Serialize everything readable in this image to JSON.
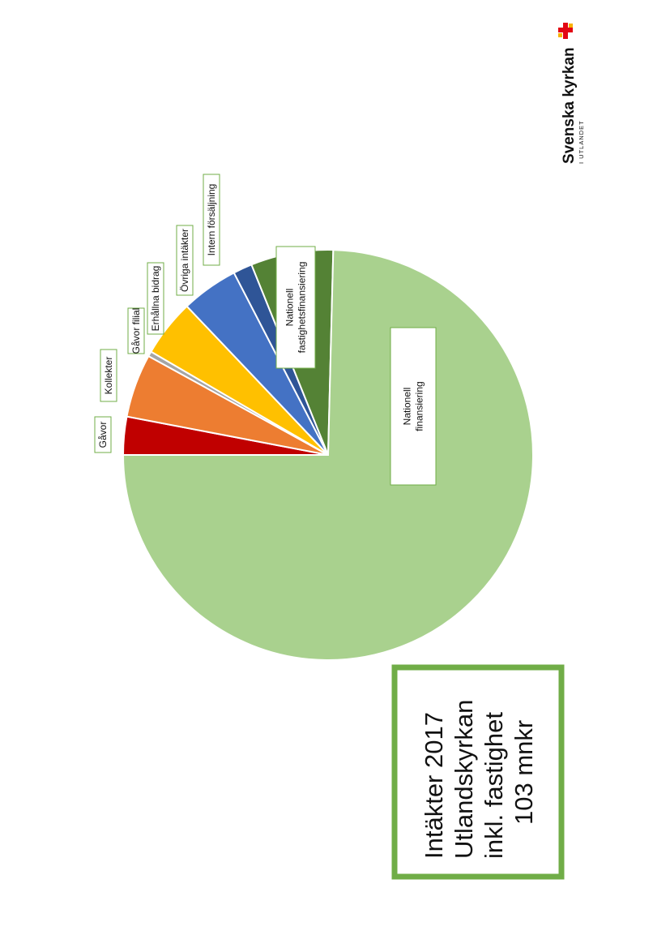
{
  "title_box": {
    "lines": [
      "Intäkter 2017",
      "Utlandskyrkan",
      "inkl. fastighet",
      "103 mnkr"
    ],
    "border_color": "#70ad47"
  },
  "logo": {
    "name": "Svenska kyrkan",
    "subtitle": "I UTLANDET",
    "icon": "church-cross-icon",
    "colors": [
      "#e30613",
      "#f9b200"
    ]
  },
  "chart_data": {
    "type": "pie",
    "title": "",
    "orientation": "rotated 90° counter-clockwise",
    "slices": [
      {
        "label": "Gåvor",
        "value": 3.0,
        "color": "#c00000"
      },
      {
        "label": "Kollekter",
        "value": 5.0,
        "color": "#ed7d31"
      },
      {
        "label": "Gåvor filial",
        "value": 0.4,
        "color": "#a5a5a5"
      },
      {
        "label": "Erhållna bidrag",
        "value": 4.5,
        "color": "#ffc000"
      },
      {
        "label": "Övriga intäkter",
        "value": 4.5,
        "color": "#4472c4"
      },
      {
        "label": "Intern försäljning",
        "value": 1.5,
        "color": "#2f5597"
      },
      {
        "label": "Nationell fastighetsfinansiering",
        "value": 6.5,
        "color": "#548235"
      },
      {
        "label": "Nationell finansiering",
        "value": 74.6,
        "color": "#a9d18e"
      }
    ],
    "label_border_color": "#70ad47"
  }
}
